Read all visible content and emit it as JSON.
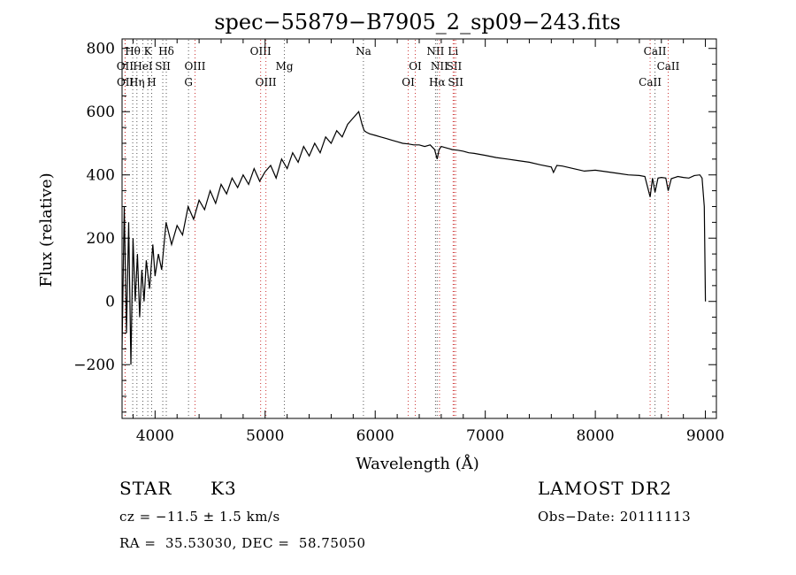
{
  "chart_data": {
    "type": "line",
    "title": "spec−55879−B7905_2_sp09−243.fits",
    "xlabel": "Wavelength (Å)",
    "ylabel": "Flux (relative)",
    "xlim": [
      3700,
      9100
    ],
    "ylim": [
      -370,
      830
    ],
    "xticks": [
      4000,
      5000,
      6000,
      7000,
      8000,
      9000
    ],
    "yticks": [
      -200,
      0,
      200,
      400,
      600,
      800
    ],
    "grid": false,
    "series": [
      {
        "color": "#000000",
        "x": [
          3700,
          3720,
          3740,
          3760,
          3780,
          3800,
          3820,
          3840,
          3860,
          3880,
          3900,
          3920,
          3950,
          3980,
          4000,
          4030,
          4060,
          4100,
          4150,
          4200,
          4250,
          4300,
          4350,
          4400,
          4450,
          4500,
          4550,
          4600,
          4650,
          4700,
          4750,
          4800,
          4850,
          4900,
          4950,
          5000,
          5050,
          5100,
          5150,
          5200,
          5250,
          5300,
          5350,
          5400,
          5450,
          5500,
          5550,
          5600,
          5650,
          5700,
          5750,
          5800,
          5850,
          5880,
          5900,
          5920,
          5950,
          6000,
          6050,
          6100,
          6150,
          6200,
          6250,
          6300,
          6350,
          6400,
          6450,
          6500,
          6540,
          6563,
          6580,
          6600,
          6650,
          6700,
          6750,
          6800,
          6850,
          6900,
          6950,
          7000,
          7100,
          7200,
          7300,
          7400,
          7500,
          7600,
          7620,
          7650,
          7700,
          7800,
          7900,
          8000,
          8100,
          8200,
          8300,
          8400,
          8450,
          8498,
          8520,
          8542,
          8570,
          8600,
          8640,
          8662,
          8690,
          8750,
          8800,
          8850,
          8900,
          8950,
          8970,
          8990,
          9000
        ],
        "y": [
          -150,
          300,
          -100,
          250,
          -200,
          200,
          0,
          150,
          -50,
          100,
          0,
          130,
          40,
          180,
          80,
          150,
          100,
          250,
          180,
          240,
          210,
          300,
          260,
          320,
          290,
          350,
          310,
          370,
          340,
          390,
          360,
          400,
          370,
          420,
          380,
          410,
          430,
          390,
          450,
          420,
          470,
          440,
          490,
          460,
          500,
          470,
          520,
          500,
          540,
          520,
          560,
          580,
          600,
          560,
          540,
          535,
          530,
          525,
          520,
          515,
          510,
          505,
          500,
          498,
          495,
          495,
          490,
          495,
          480,
          450,
          480,
          490,
          485,
          480,
          478,
          475,
          470,
          468,
          465,
          462,
          455,
          450,
          445,
          440,
          432,
          425,
          408,
          430,
          428,
          420,
          412,
          415,
          410,
          405,
          400,
          398,
          395,
          330,
          390,
          345,
          390,
          392,
          390,
          350,
          388,
          395,
          392,
          390,
          398,
          400,
          390,
          300,
          0
        ]
      }
    ],
    "annotations": {
      "line_markers": [
        {
          "label": "Hθ",
          "x": 3797
        },
        {
          "label": "K",
          "x": 3934
        },
        {
          "label": "Hδ",
          "x": 4102
        },
        {
          "label": "OII",
          "x": 3727
        },
        {
          "label": "HeI",
          "x": 3889
        },
        {
          "label": "SII",
          "x": 4070
        },
        {
          "label": "OII",
          "x": 3729
        },
        {
          "label": "Hη",
          "x": 3835
        },
        {
          "label": "H",
          "x": 3969
        },
        {
          "label": "OIII",
          "x": 4363
        },
        {
          "label": "G",
          "x": 4304
        },
        {
          "label": "OIII",
          "x": 4959
        },
        {
          "label": "Mg",
          "x": 5175
        },
        {
          "label": "OIII",
          "x": 5007
        },
        {
          "label": "Na",
          "x": 5893
        },
        {
          "label": "OI",
          "x": 6364
        },
        {
          "label": "OI",
          "x": 6300
        },
        {
          "label": "NII",
          "x": 6548
        },
        {
          "label": "Li",
          "x": 6708
        },
        {
          "label": "NII",
          "x": 6584
        },
        {
          "label": "SII",
          "x": 6717
        },
        {
          "label": "Hα",
          "x": 6563
        },
        {
          "label": "SII",
          "x": 6731
        },
        {
          "label": "CaII",
          "x": 8542
        },
        {
          "label": "CaII",
          "x": 8662
        },
        {
          "label": "CaII",
          "x": 8498
        }
      ]
    }
  },
  "info": {
    "object_class": "STAR",
    "subclass": "K3",
    "survey": "LAMOST DR2",
    "cz_line": "cz = −11.5 ± 1.5 km/s",
    "obs_date": "Obs−Date: 20111113",
    "coords": "RA =  35.53030, DEC =  58.75050"
  }
}
